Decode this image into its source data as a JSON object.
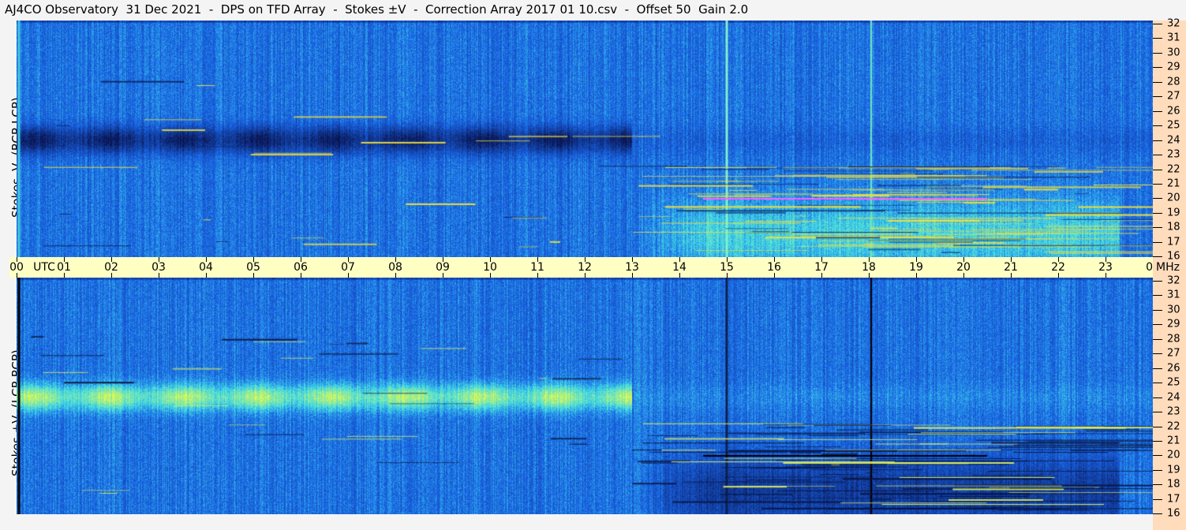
{
  "title": "AJ4CO Observatory  31 Dec 2021  -  DPS on TFD Array  -  Stokes ±V  -  Correction Array 2017 01 10.csv  -  Offset 50  Gain 2.0",
  "chart_data": {
    "type": "heatmap",
    "title": "AJ4CO Observatory  31 Dec 2021  -  DPS on TFD Array  -  Stokes ±V  -  Correction Array 2017 01 10.csv  -  Offset 50  Gain 2.0",
    "xlabel": "UTC",
    "ylabel": "MHz",
    "xlim": [
      0,
      24
    ],
    "ylim": [
      16,
      32
    ],
    "x_ticks": [
      "00",
      "01",
      "02",
      "03",
      "04",
      "05",
      "06",
      "07",
      "08",
      "09",
      "10",
      "11",
      "12",
      "13",
      "14",
      "15",
      "16",
      "17",
      "18",
      "19",
      "20",
      "21",
      "22",
      "23",
      "00"
    ],
    "y_ticks": [
      "32",
      "31",
      "30",
      "29",
      "28",
      "27",
      "26",
      "25",
      "24",
      "23",
      "22",
      "21",
      "20",
      "19",
      "18",
      "17",
      "16"
    ],
    "panels": [
      {
        "label": "Stokes -V  (RCP-LCP)"
      },
      {
        "label": "Stokes +V  (LCP-RCP)"
      }
    ],
    "colors": {
      "background": "#1e6ee6",
      "axis_time": "#ffffc4",
      "axis_freq": "#ffdcbc"
    }
  }
}
